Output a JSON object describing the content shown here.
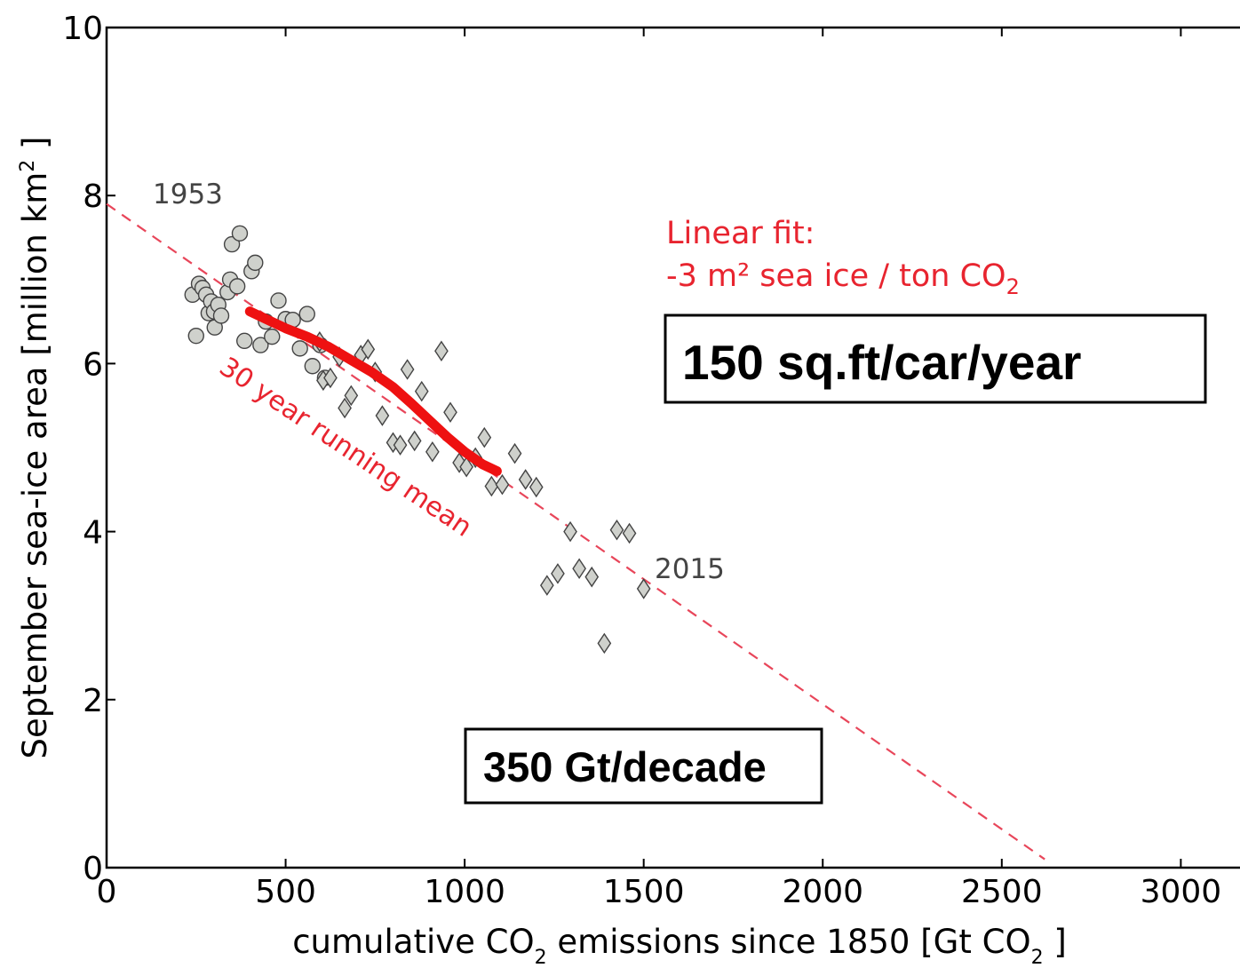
{
  "colors": {
    "fit_line": "#e8465a",
    "running_mean": "#ee1111",
    "annotation_red": "#e8242f",
    "marker_fill": "#cfd1cc",
    "marker_edge": "#444444"
  },
  "chart_data": {
    "type": "scatter",
    "title": "",
    "xlabel_main": "cumulative CO",
    "xlabel_sub": "2",
    "xlabel_rest": " emissions since 1850 [Gt CO",
    "xlabel_sub2": "2",
    "xlabel_end": " ]",
    "ylabel_main": "September sea-ice area [million km",
    "ylabel_sup": "2",
    "ylabel_end": " ]",
    "xlim": [
      0,
      3200
    ],
    "ylim": [
      0,
      10
    ],
    "grid": false,
    "x_ticks": [
      0,
      500,
      1000,
      1500,
      2000,
      2500,
      3000
    ],
    "x_tick_labels": [
      "0",
      "500",
      "1000",
      "1500",
      "2000",
      "2500",
      "3000"
    ],
    "y_ticks": [
      0,
      2,
      4,
      6,
      8,
      10
    ],
    "y_tick_labels": [
      "0",
      "2",
      "4",
      "6",
      "8",
      "10"
    ],
    "series": [
      {
        "marker": "circle",
        "points": [
          [
            240,
            6.82
          ],
          [
            250,
            6.33
          ],
          [
            258,
            6.95
          ],
          [
            268,
            6.9
          ],
          [
            278,
            6.82
          ],
          [
            285,
            6.6
          ],
          [
            292,
            6.74
          ],
          [
            300,
            6.62
          ],
          [
            302,
            6.43
          ],
          [
            312,
            6.7
          ],
          [
            320,
            6.57
          ],
          [
            338,
            6.85
          ],
          [
            345,
            7.0
          ],
          [
            350,
            7.42
          ],
          [
            365,
            6.92
          ],
          [
            372,
            7.55
          ],
          [
            385,
            6.27
          ],
          [
            405,
            7.1
          ],
          [
            415,
            7.2
          ],
          [
            430,
            6.22
          ],
          [
            445,
            6.5
          ],
          [
            462,
            6.32
          ],
          [
            480,
            6.75
          ],
          [
            500,
            6.53
          ],
          [
            520,
            6.52
          ],
          [
            540,
            6.18
          ],
          [
            560,
            6.59
          ],
          [
            575,
            5.97
          ],
          [
            597,
            6.22
          ],
          [
            610,
            5.83
          ]
        ]
      },
      {
        "marker": "diamond",
        "points": [
          [
            595,
            6.26
          ],
          [
            605,
            5.8
          ],
          [
            625,
            5.83
          ],
          [
            650,
            6.08
          ],
          [
            665,
            5.47
          ],
          [
            683,
            5.62
          ],
          [
            710,
            6.1
          ],
          [
            730,
            6.17
          ],
          [
            750,
            5.9
          ],
          [
            770,
            5.38
          ],
          [
            800,
            5.06
          ],
          [
            820,
            5.03
          ],
          [
            840,
            5.93
          ],
          [
            860,
            5.08
          ],
          [
            880,
            5.67
          ],
          [
            910,
            4.95
          ],
          [
            935,
            6.15
          ],
          [
            960,
            5.42
          ],
          [
            985,
            4.82
          ],
          [
            1005,
            4.77
          ],
          [
            1030,
            4.88
          ],
          [
            1055,
            5.12
          ],
          [
            1075,
            4.54
          ],
          [
            1105,
            4.56
          ],
          [
            1140,
            4.93
          ],
          [
            1170,
            4.62
          ],
          [
            1200,
            4.53
          ],
          [
            1230,
            3.36
          ],
          [
            1260,
            3.5
          ],
          [
            1295,
            4.0
          ],
          [
            1320,
            3.56
          ],
          [
            1355,
            3.46
          ],
          [
            1390,
            2.67
          ],
          [
            1425,
            4.02
          ],
          [
            1460,
            3.98
          ],
          [
            1500,
            3.32
          ]
        ]
      }
    ],
    "linear_fit": {
      "x_start": 0,
      "y_start": 7.9,
      "x_end": 2620,
      "y_end": 0.1
    },
    "running_mean": [
      [
        400,
        6.62
      ],
      [
        450,
        6.52
      ],
      [
        500,
        6.42
      ],
      [
        560,
        6.32
      ],
      [
        620,
        6.2
      ],
      [
        680,
        6.05
      ],
      [
        740,
        5.9
      ],
      [
        800,
        5.72
      ],
      [
        850,
        5.53
      ],
      [
        900,
        5.33
      ],
      [
        950,
        5.13
      ],
      [
        1000,
        4.95
      ],
      [
        1050,
        4.8
      ],
      [
        1090,
        4.72
      ]
    ],
    "annotations": {
      "year_start": "1953",
      "year_end": "2015",
      "fit_title": "Linear fit:",
      "fit_detail": "-3 m² sea ice / ton CO",
      "fit_detail_sub": "2",
      "running_mean_label": "30 year running mean",
      "box_top": "150 sq.ft/car/year",
      "box_bottom": "350 Gt/decade"
    }
  }
}
